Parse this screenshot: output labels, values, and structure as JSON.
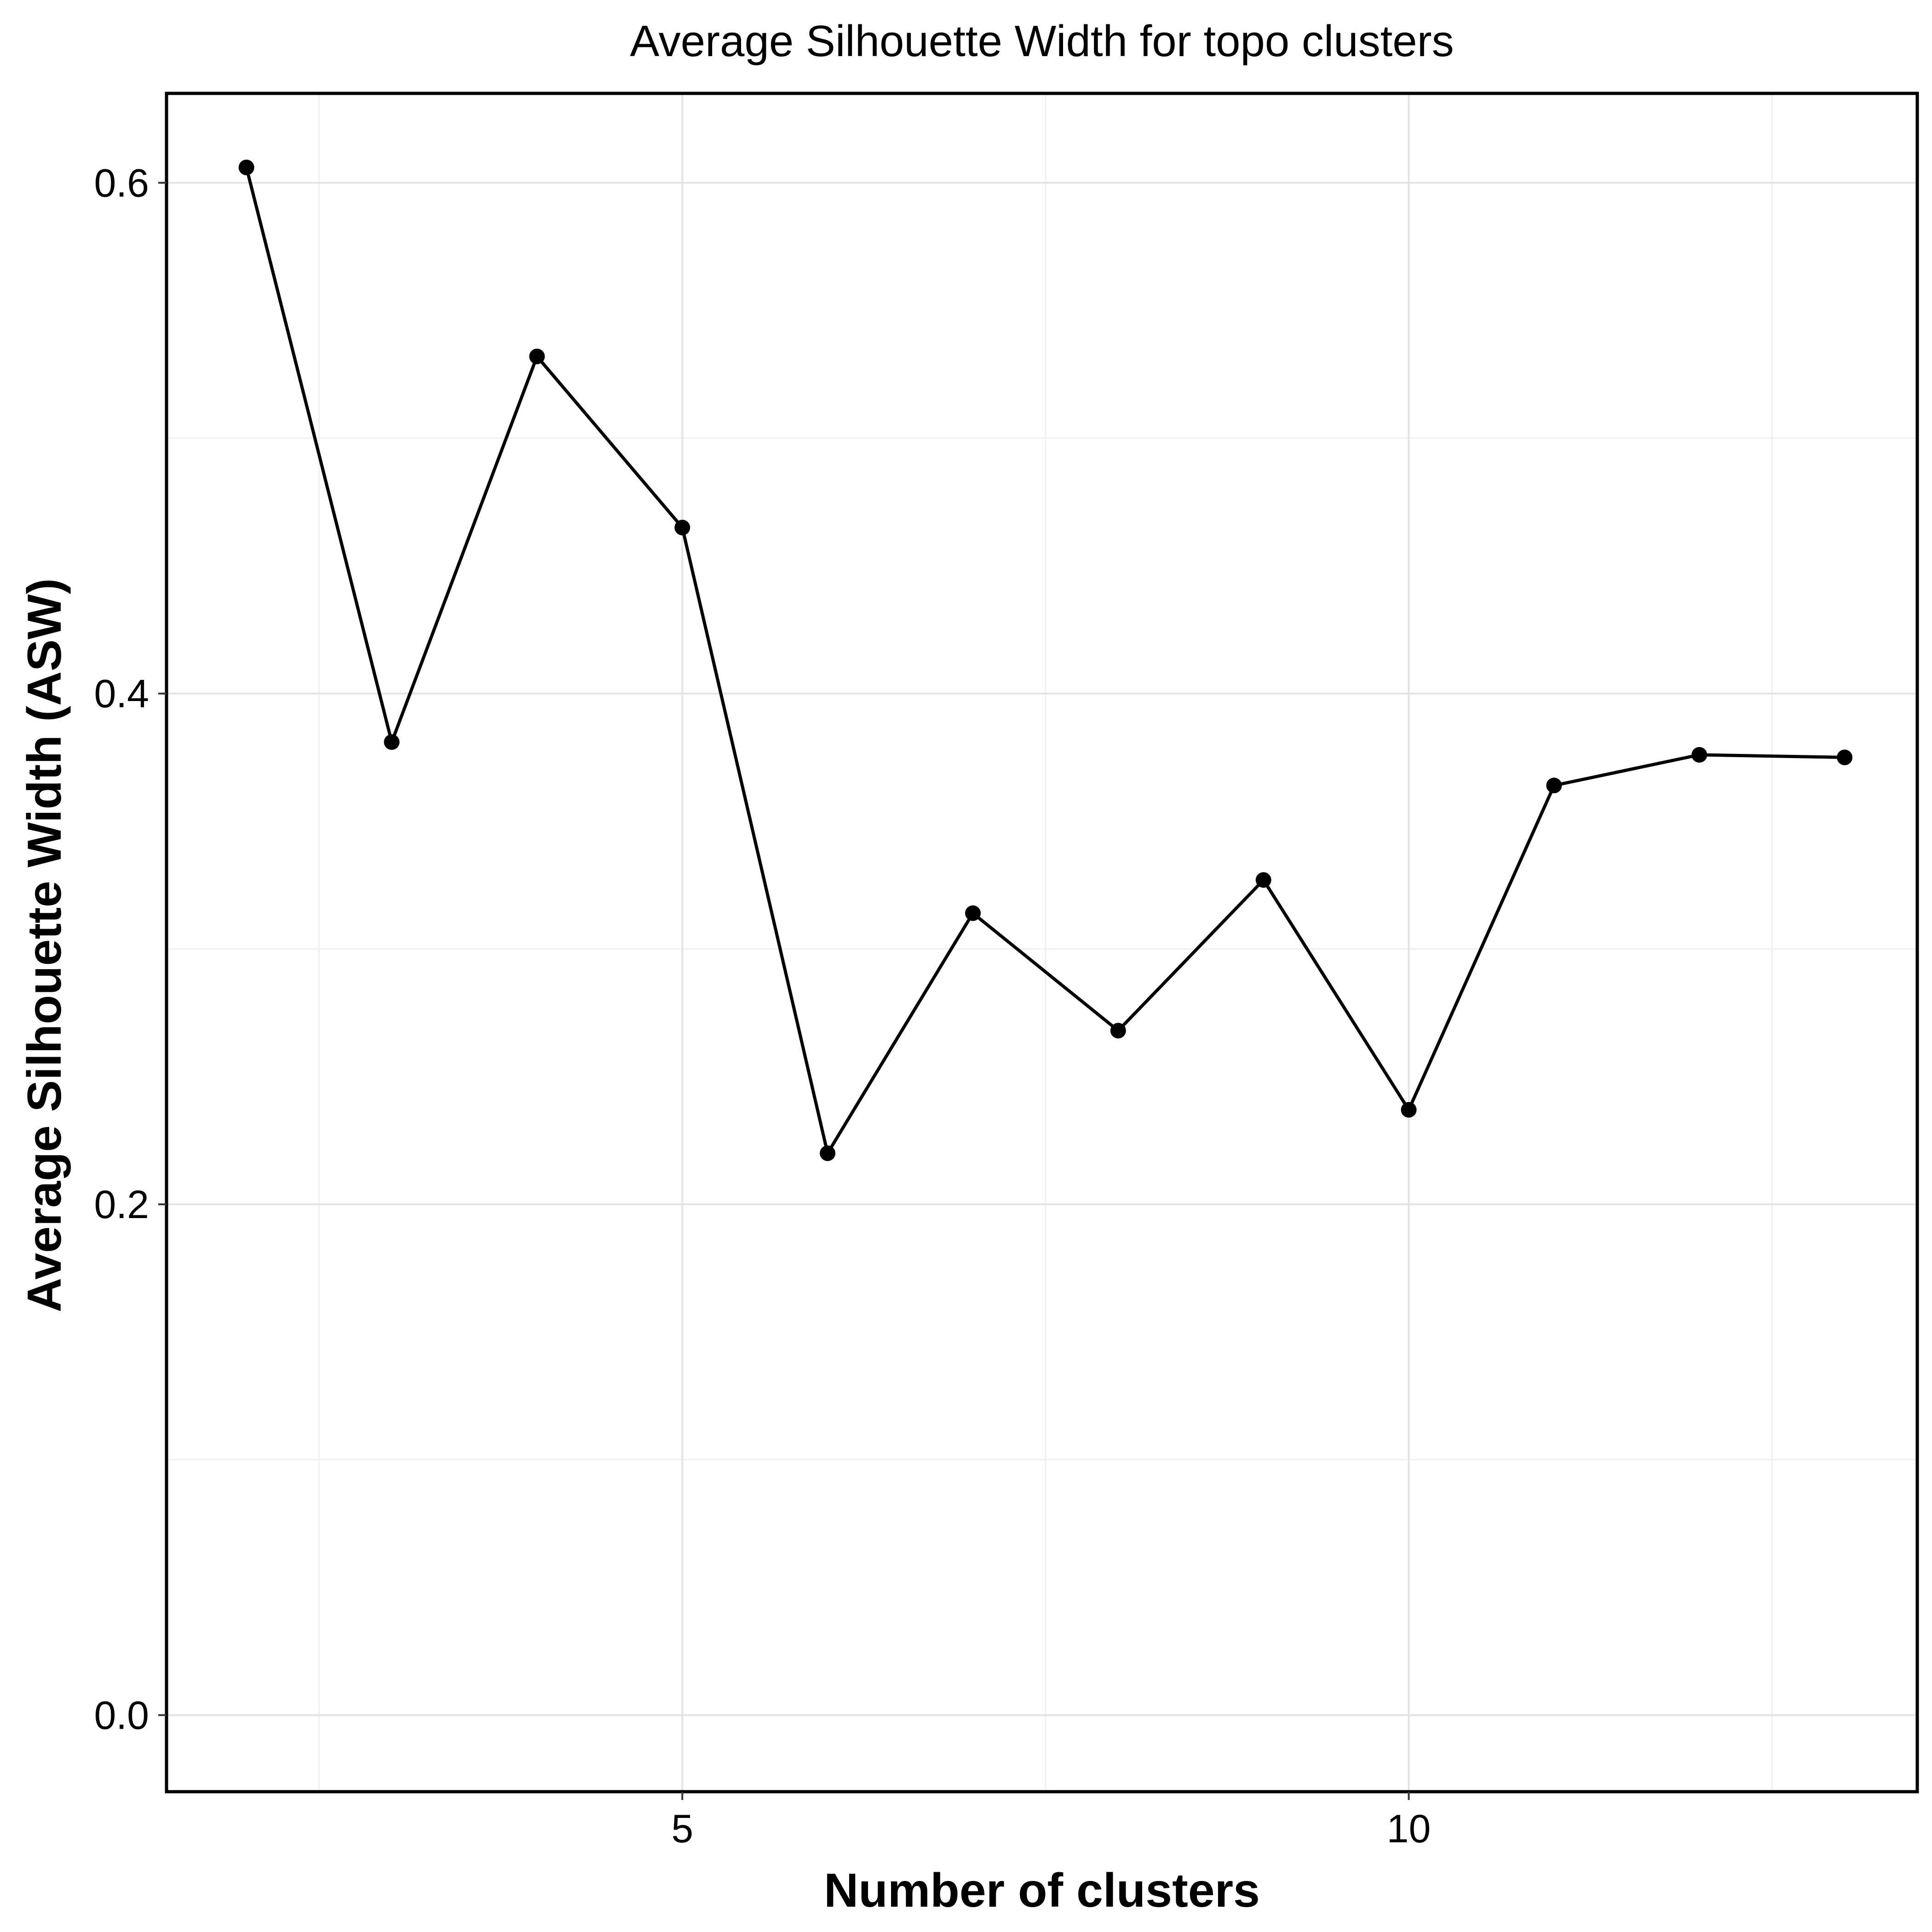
{
  "chart_data": {
    "type": "line",
    "title": "Average Silhouette Width for topo clusters",
    "xlabel": "Number of clusters",
    "ylabel": "Average Silhouette Width (ASW)",
    "xlim": [
      1.45,
      13.5
    ],
    "ylim": [
      -0.03,
      0.635
    ],
    "x_ticks": [
      5,
      10
    ],
    "x_tick_labels": [
      "5",
      "10"
    ],
    "y_ticks": [
      0.0,
      0.2,
      0.4,
      0.6
    ],
    "y_tick_labels": [
      "0.0",
      "0.2",
      "0.4",
      "0.6"
    ],
    "grid": true,
    "legend": "none",
    "series": [
      {
        "x": [
          2,
          3,
          4,
          5,
          6,
          7,
          8,
          9,
          10,
          11,
          12,
          13
        ],
        "y": [
          0.606,
          0.381,
          0.532,
          0.465,
          0.22,
          0.314,
          0.268,
          0.327,
          0.237,
          0.364,
          0.376,
          0.375
        ]
      }
    ],
    "colors": {
      "line": "#000000",
      "points": "#000000",
      "grid": "#e3e3e3",
      "border": "#000000"
    }
  }
}
